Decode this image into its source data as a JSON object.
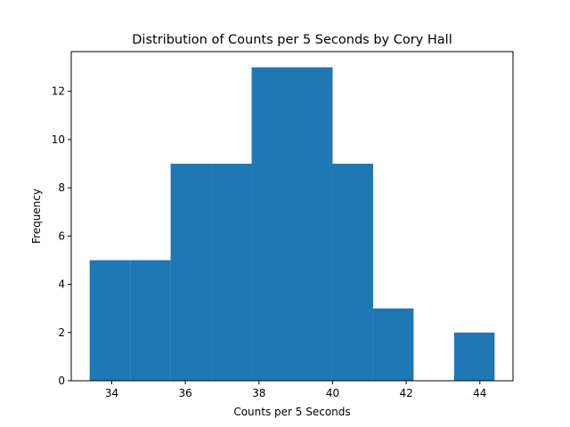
{
  "chart_data": {
    "type": "bar",
    "title": "Distribution of Counts per 5 Seconds by Cory Hall",
    "xlabel": "Counts per 5 Seconds",
    "ylabel": "Frequency",
    "bins": [
      {
        "x0": 33.4,
        "x1": 34.5,
        "count": 5
      },
      {
        "x0": 34.5,
        "x1": 35.6,
        "count": 5
      },
      {
        "x0": 35.6,
        "x1": 36.7,
        "count": 9
      },
      {
        "x0": 36.7,
        "x1": 37.8,
        "count": 9
      },
      {
        "x0": 37.8,
        "x1": 38.9,
        "count": 13
      },
      {
        "x0": 38.9,
        "x1": 40.0,
        "count": 13
      },
      {
        "x0": 40.0,
        "x1": 41.1,
        "count": 9
      },
      {
        "x0": 41.1,
        "x1": 42.2,
        "count": 3
      },
      {
        "x0": 42.2,
        "x1": 43.3,
        "count": 0
      },
      {
        "x0": 43.3,
        "x1": 44.4,
        "count": 2
      }
    ],
    "xlim": [
      32.9,
      44.9
    ],
    "ylim": [
      0,
      13.65
    ],
    "xticks": [
      34,
      36,
      38,
      40,
      42,
      44
    ],
    "yticks": [
      0,
      2,
      4,
      6,
      8,
      10,
      12
    ],
    "bar_color": "#1f77b4",
    "grid": false,
    "legend": "none"
  }
}
